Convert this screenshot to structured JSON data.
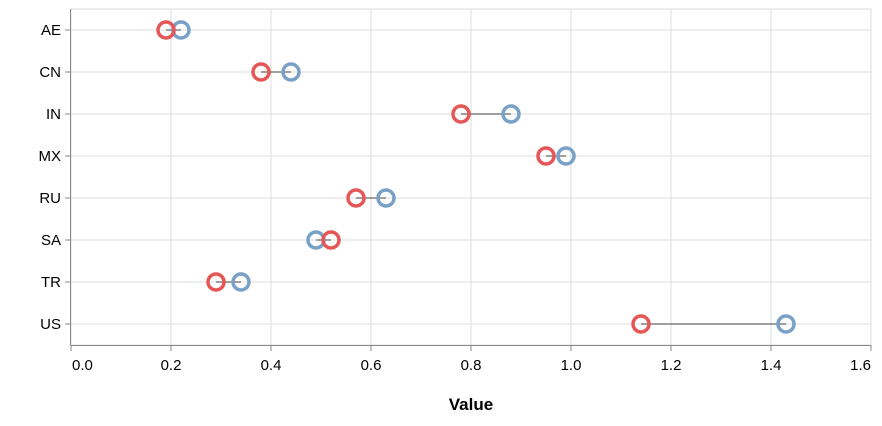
{
  "chart_data": {
    "type": "scatter",
    "subtype": "dumbbell",
    "title": "",
    "xlabel": "Value",
    "ylabel": "",
    "xlim": [
      0,
      1.6
    ],
    "x_ticks": [
      "0.0",
      "0.2",
      "0.4",
      "0.6",
      "0.8",
      "1.0",
      "1.2",
      "1.4",
      "1.6"
    ],
    "grid": true,
    "legend": "none",
    "categories": [
      "AE",
      "CN",
      "IN",
      "MX",
      "RU",
      "SA",
      "TR",
      "US"
    ],
    "series": [
      {
        "color": "#e45756",
        "values": [
          0.19,
          0.38,
          0.78,
          0.95,
          0.57,
          0.52,
          0.29,
          1.14
        ]
      },
      {
        "color": "#79a1c8",
        "values": [
          0.22,
          0.44,
          0.88,
          0.99,
          0.63,
          0.49,
          0.34,
          1.43
        ]
      }
    ]
  }
}
